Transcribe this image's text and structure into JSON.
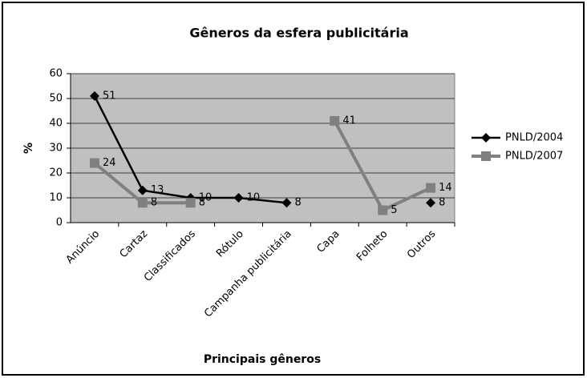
{
  "chart_data": {
    "type": "line",
    "title": "Gêneros da esfera publicitária",
    "x_label": "Principais gêneros",
    "y_label": "%",
    "categories": [
      "Anúncio",
      "Cartaz",
      "Classificados",
      "Rótulo",
      "Campanha publicitária",
      "Capa",
      "Folheto",
      "Outros"
    ],
    "series": [
      {
        "name": "PNLD/2004",
        "color": "#000000",
        "marker": "diamond",
        "values": [
          51,
          13,
          10,
          10,
          8,
          null,
          null,
          8
        ]
      },
      {
        "name": "PNLD/2007",
        "color": "#808080",
        "marker": "square",
        "values": [
          24,
          8,
          8,
          null,
          null,
          41,
          5,
          14
        ]
      }
    ],
    "ylim": [
      0,
      60
    ],
    "yticks": [
      0,
      10,
      20,
      30,
      40,
      50,
      60
    ],
    "grid": true,
    "legend": "right"
  }
}
